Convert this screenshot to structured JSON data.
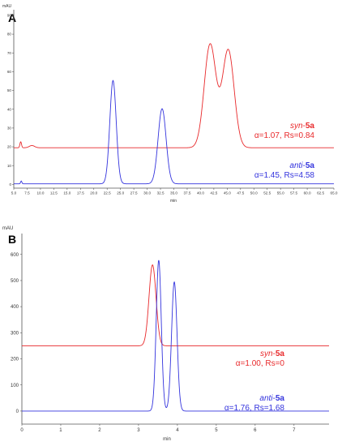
{
  "chart_data": [
    {
      "panel": "A",
      "type": "line",
      "ylabel": "mAU",
      "xlabel": "min",
      "xlim": [
        5.0,
        65.0
      ],
      "ylim": [
        -2,
        93
      ],
      "xticks": [
        "5.0",
        "7.5",
        "10.0",
        "12.5",
        "15.0",
        "17.5",
        "20.0",
        "22.5",
        "25.0",
        "27.5",
        "30.0",
        "32.5",
        "35.0",
        "37.5",
        "40.0",
        "42.5",
        "45.0",
        "47.5",
        "50.0",
        "52.5",
        "55.0",
        "57.5",
        "60.0",
        "62.5",
        "65.0"
      ],
      "yticks": [
        "0",
        "10",
        "20",
        "30",
        "40",
        "50",
        "60",
        "70",
        "80",
        "90"
      ],
      "series": [
        {
          "key": "syn",
          "color": "#e8282a",
          "baseline": 19.5,
          "peaks": [
            {
              "x": 6.3,
              "height": 3.2,
              "width": 0.15
            },
            {
              "x": 8.4,
              "height": 1.2,
              "width": 0.5
            },
            {
              "x": 41.8,
              "height": 55.0,
              "width": 1.1
            },
            {
              "x": 45.2,
              "height": 52.0,
              "width": 1.1
            }
          ],
          "annotation": {
            "line1_italic": "syn",
            "line1_bold": "5a",
            "line2": "α=1.07, Rs=0.84"
          }
        },
        {
          "key": "anti",
          "color": "#3333dd",
          "baseline": 0.3,
          "peaks": [
            {
              "x": 6.4,
              "height": 1.5,
              "width": 0.12
            },
            {
              "x": 23.6,
              "height": 55.0,
              "width": 0.6
            },
            {
              "x": 32.8,
              "height": 40.0,
              "width": 0.75
            }
          ],
          "annotation": {
            "line1_italic": "anti",
            "line1_bold": "5a",
            "line2": "α=1.45, Rs=4.58"
          }
        }
      ]
    },
    {
      "panel": "B",
      "type": "line",
      "ylabel": "mAU",
      "xlabel": "min",
      "xlim": [
        0,
        7.9
      ],
      "ylim": [
        -50,
        680
      ],
      "xticks": [
        "0",
        "1",
        "2",
        "3",
        "4",
        "5",
        "6",
        "7"
      ],
      "yticks": [
        "0",
        "100",
        "200",
        "300",
        "400",
        "500",
        "600"
      ],
      "series": [
        {
          "key": "syn",
          "color": "#e8282a",
          "baseline": 250,
          "peaks": [
            {
              "x": 3.36,
              "height": 310,
              "width": 0.09
            }
          ],
          "annotation": {
            "line1_italic": "syn",
            "line1_bold": "5a",
            "line2": "α=1.00, Rs=0"
          }
        },
        {
          "key": "anti",
          "color": "#3333dd",
          "baseline": 0,
          "peaks": [
            {
              "x": 3.52,
              "height": 578,
              "width": 0.065
            },
            {
              "x": 3.92,
              "height": 495,
              "width": 0.07
            }
          ],
          "annotation": {
            "line1_italic": "anti",
            "line1_bold": "5a",
            "line2": "α=1.76, Rs=1.68"
          }
        }
      ]
    }
  ]
}
